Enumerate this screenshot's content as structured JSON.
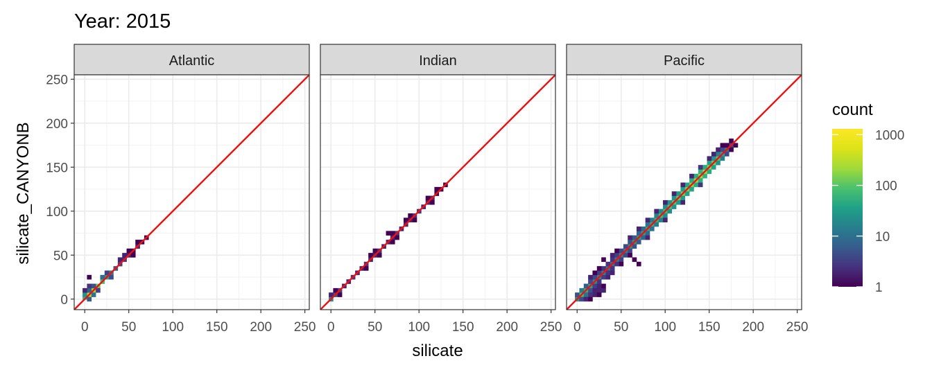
{
  "chart_data": {
    "type": "heatmap",
    "title": "Year: 2015",
    "xlabel": "silicate",
    "ylabel": "silicate_CANYONB",
    "x_ticks": [
      0,
      50,
      100,
      150,
      200,
      250
    ],
    "y_ticks": [
      0,
      50,
      100,
      150,
      200,
      250
    ],
    "xlim": [
      -12,
      255
    ],
    "ylim": [
      -12,
      255
    ],
    "grid": true,
    "reference_line": {
      "slope": 1,
      "intercept": 0,
      "color": "#ee1111"
    },
    "legend": {
      "title": "count",
      "position": "right",
      "scale": "log",
      "ticks": [
        "1",
        "10",
        "100",
        "1000"
      ],
      "tick_values": [
        1,
        10,
        100,
        1000
      ],
      "colormap": "viridis"
    },
    "bin_width": 5,
    "panels": [
      {
        "name": "Atlantic",
        "bins": [
          [
            0,
            2,
            120
          ],
          [
            5,
            5,
            600
          ],
          [
            10,
            10,
            500
          ],
          [
            15,
            15,
            250
          ],
          [
            20,
            20,
            150
          ],
          [
            25,
            25,
            60
          ],
          [
            30,
            30,
            20
          ],
          [
            35,
            35,
            8
          ],
          [
            40,
            40,
            4
          ],
          [
            45,
            45,
            3
          ],
          [
            50,
            50,
            2
          ],
          [
            55,
            55,
            1
          ],
          [
            60,
            60,
            2
          ],
          [
            65,
            65,
            1
          ],
          [
            70,
            70,
            1
          ],
          [
            5,
            10,
            10
          ],
          [
            10,
            15,
            6
          ],
          [
            0,
            5,
            40
          ],
          [
            15,
            10,
            4
          ],
          [
            20,
            25,
            12
          ],
          [
            10,
            5,
            15
          ],
          [
            5,
            0,
            8
          ],
          [
            30,
            25,
            5
          ],
          [
            45,
            50,
            2
          ],
          [
            55,
            50,
            1
          ],
          [
            0,
            10,
            2
          ],
          [
            5,
            15,
            3
          ],
          [
            5,
            25,
            1
          ],
          [
            25,
            30,
            4
          ],
          [
            40,
            45,
            2
          ],
          [
            50,
            55,
            1
          ],
          [
            60,
            65,
            1
          ]
        ]
      },
      {
        "name": "Indian",
        "bins": [
          [
            0,
            0,
            30
          ],
          [
            5,
            5,
            6
          ],
          [
            10,
            10,
            4
          ],
          [
            15,
            15,
            2
          ],
          [
            20,
            20,
            2
          ],
          [
            25,
            25,
            3
          ],
          [
            30,
            30,
            2
          ],
          [
            35,
            35,
            2
          ],
          [
            40,
            40,
            3
          ],
          [
            45,
            45,
            2
          ],
          [
            50,
            50,
            2
          ],
          [
            55,
            55,
            3
          ],
          [
            60,
            60,
            2
          ],
          [
            65,
            65,
            2
          ],
          [
            70,
            70,
            2
          ],
          [
            75,
            75,
            3
          ],
          [
            80,
            80,
            2
          ],
          [
            85,
            85,
            2
          ],
          [
            90,
            90,
            2
          ],
          [
            95,
            95,
            3
          ],
          [
            100,
            100,
            3
          ],
          [
            105,
            105,
            2
          ],
          [
            110,
            110,
            2
          ],
          [
            115,
            115,
            2
          ],
          [
            120,
            120,
            1
          ],
          [
            125,
            125,
            1
          ],
          [
            130,
            130,
            1
          ],
          [
            5,
            10,
            1
          ],
          [
            10,
            5,
            1
          ],
          [
            50,
            55,
            1
          ],
          [
            55,
            50,
            1
          ],
          [
            70,
            75,
            1
          ],
          [
            75,
            70,
            1
          ],
          [
            90,
            95,
            1
          ],
          [
            95,
            90,
            1
          ],
          [
            110,
            115,
            1
          ],
          [
            115,
            110,
            1
          ],
          [
            70,
            65,
            1
          ],
          [
            40,
            35,
            1
          ],
          [
            45,
            50,
            1
          ],
          [
            0,
            5,
            2
          ],
          [
            65,
            75,
            1
          ],
          [
            85,
            90,
            1
          ],
          [
            120,
            125,
            1
          ]
        ]
      },
      {
        "name": "Pacific",
        "bins": [
          [
            0,
            0,
            40
          ],
          [
            5,
            5,
            150
          ],
          [
            10,
            10,
            100
          ],
          [
            15,
            15,
            70
          ],
          [
            20,
            20,
            40
          ],
          [
            25,
            25,
            30
          ],
          [
            30,
            30,
            25
          ],
          [
            35,
            35,
            20
          ],
          [
            40,
            40,
            20
          ],
          [
            45,
            45,
            25
          ],
          [
            50,
            50,
            30
          ],
          [
            55,
            55,
            30
          ],
          [
            60,
            60,
            40
          ],
          [
            65,
            65,
            50
          ],
          [
            70,
            70,
            60
          ],
          [
            75,
            75,
            60
          ],
          [
            80,
            80,
            80
          ],
          [
            85,
            85,
            100
          ],
          [
            90,
            90,
            120
          ],
          [
            95,
            95,
            150
          ],
          [
            100,
            100,
            150
          ],
          [
            105,
            105,
            180
          ],
          [
            110,
            110,
            200
          ],
          [
            115,
            115,
            250
          ],
          [
            120,
            120,
            300
          ],
          [
            125,
            125,
            350
          ],
          [
            130,
            130,
            400
          ],
          [
            135,
            135,
            450
          ],
          [
            140,
            140,
            500
          ],
          [
            145,
            145,
            500
          ],
          [
            150,
            150,
            400
          ],
          [
            155,
            155,
            300
          ],
          [
            160,
            160,
            200
          ],
          [
            165,
            165,
            80
          ],
          [
            170,
            170,
            20
          ],
          [
            175,
            175,
            5
          ],
          [
            180,
            175,
            1
          ],
          [
            0,
            5,
            6
          ],
          [
            5,
            0,
            5
          ],
          [
            5,
            10,
            20
          ],
          [
            10,
            5,
            15
          ],
          [
            10,
            15,
            8
          ],
          [
            15,
            10,
            6
          ],
          [
            15,
            20,
            5
          ],
          [
            20,
            15,
            4
          ],
          [
            20,
            10,
            2
          ],
          [
            25,
            10,
            2
          ],
          [
            30,
            10,
            2
          ],
          [
            15,
            5,
            3
          ],
          [
            20,
            5,
            2
          ],
          [
            10,
            0,
            2
          ],
          [
            25,
            15,
            2
          ],
          [
            30,
            15,
            1
          ],
          [
            25,
            20,
            3
          ],
          [
            30,
            25,
            4
          ],
          [
            35,
            30,
            3
          ],
          [
            40,
            35,
            3
          ],
          [
            45,
            40,
            3
          ],
          [
            50,
            45,
            4
          ],
          [
            55,
            50,
            5
          ],
          [
            60,
            55,
            5
          ],
          [
            65,
            60,
            6
          ],
          [
            70,
            65,
            8
          ],
          [
            75,
            70,
            10
          ],
          [
            80,
            75,
            12
          ],
          [
            85,
            80,
            15
          ],
          [
            90,
            85,
            20
          ],
          [
            95,
            90,
            25
          ],
          [
            100,
            95,
            30
          ],
          [
            105,
            100,
            35
          ],
          [
            110,
            105,
            40
          ],
          [
            115,
            110,
            45
          ],
          [
            120,
            115,
            50
          ],
          [
            125,
            120,
            60
          ],
          [
            130,
            125,
            70
          ],
          [
            135,
            130,
            80
          ],
          [
            140,
            135,
            90
          ],
          [
            145,
            140,
            100
          ],
          [
            150,
            145,
            80
          ],
          [
            155,
            150,
            60
          ],
          [
            160,
            155,
            40
          ],
          [
            165,
            160,
            20
          ],
          [
            170,
            165,
            5
          ],
          [
            20,
            25,
            5
          ],
          [
            25,
            30,
            4
          ],
          [
            30,
            35,
            3
          ],
          [
            35,
            40,
            3
          ],
          [
            40,
            45,
            3
          ],
          [
            45,
            50,
            4
          ],
          [
            50,
            55,
            5
          ],
          [
            55,
            60,
            5
          ],
          [
            60,
            65,
            6
          ],
          [
            65,
            70,
            8
          ],
          [
            70,
            75,
            10
          ],
          [
            75,
            80,
            12
          ],
          [
            80,
            85,
            15
          ],
          [
            85,
            90,
            20
          ],
          [
            90,
            95,
            25
          ],
          [
            95,
            100,
            30
          ],
          [
            100,
            105,
            35
          ],
          [
            105,
            110,
            40
          ],
          [
            110,
            115,
            45
          ],
          [
            115,
            120,
            50
          ],
          [
            120,
            125,
            60
          ],
          [
            125,
            130,
            70
          ],
          [
            130,
            135,
            80
          ],
          [
            135,
            140,
            90
          ],
          [
            140,
            145,
            100
          ],
          [
            145,
            150,
            80
          ],
          [
            150,
            155,
            60
          ],
          [
            155,
            160,
            40
          ],
          [
            160,
            165,
            20
          ],
          [
            165,
            170,
            5
          ],
          [
            20,
            30,
            1
          ],
          [
            25,
            35,
            1
          ],
          [
            15,
            25,
            2
          ],
          [
            30,
            45,
            1
          ],
          [
            65,
            45,
            1
          ],
          [
            70,
            40,
            1
          ],
          [
            50,
            40,
            1
          ],
          [
            60,
            50,
            1
          ],
          [
            70,
            80,
            2
          ],
          [
            80,
            90,
            2
          ],
          [
            100,
            110,
            2
          ],
          [
            120,
            130,
            2
          ],
          [
            140,
            150,
            3
          ],
          [
            150,
            160,
            2
          ],
          [
            160,
            170,
            2
          ],
          [
            170,
            175,
            1
          ],
          [
            175,
            170,
            1
          ],
          [
            80,
            70,
            2
          ],
          [
            100,
            90,
            2
          ],
          [
            120,
            110,
            2
          ],
          [
            140,
            130,
            3
          ],
          [
            155,
            165,
            2
          ],
          [
            165,
            175,
            1
          ],
          [
            175,
            180,
            1
          ],
          [
            40,
            50,
            2
          ],
          [
            45,
            55,
            1
          ],
          [
            60,
            70,
            2
          ],
          [
            90,
            100,
            2
          ],
          [
            110,
            120,
            2
          ],
          [
            130,
            140,
            2
          ],
          [
            35,
            25,
            2
          ],
          [
            40,
            30,
            2
          ],
          [
            15,
            0,
            1
          ],
          [
            25,
            5,
            1
          ]
        ]
      }
    ]
  }
}
